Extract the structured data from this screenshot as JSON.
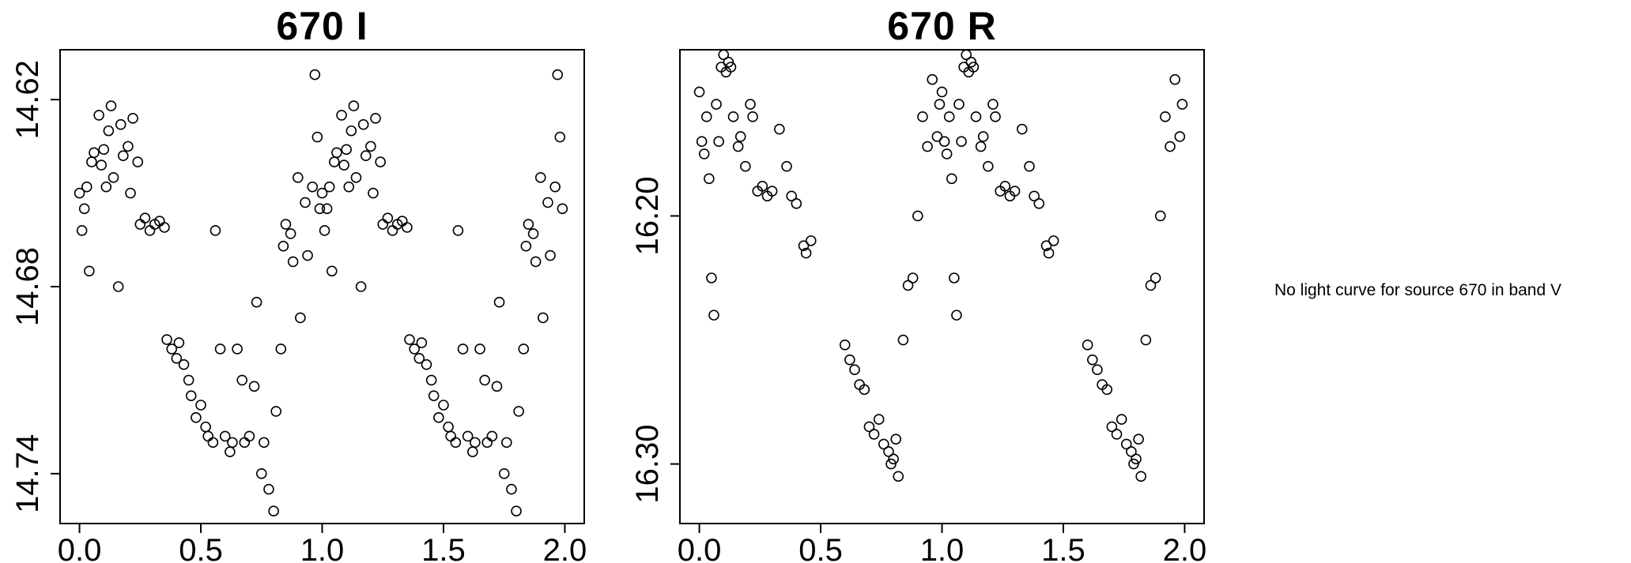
{
  "note": {
    "text": "No light curve for source 670 in band V"
  },
  "colors": {
    "foreground": "#000000",
    "background": "#ffffff"
  },
  "chart_data": [
    {
      "type": "scatter",
      "title": "670 I",
      "band": "I",
      "xlabel": "",
      "ylabel": "",
      "marker": "open-circle",
      "grid": false,
      "legend": "none",
      "y_axis_inverted": true,
      "phase_duplicated": true,
      "xlim": [
        -0.08,
        2.08
      ],
      "ylim": [
        14.756,
        14.604
      ],
      "x_ticks": [
        0.0,
        0.5,
        1.0,
        1.5,
        2.0
      ],
      "x_tick_labels": [
        "0.0",
        "0.5",
        "1.0",
        "1.5",
        "2.0"
      ],
      "y_ticks": [
        14.62,
        14.68,
        14.74
      ],
      "y_tick_labels": [
        "14.62",
        "14.68",
        "14.74"
      ],
      "points": {
        "phase": [
          0.0,
          0.01,
          0.02,
          0.03,
          0.04,
          0.05,
          0.06,
          0.08,
          0.09,
          0.1,
          0.11,
          0.12,
          0.13,
          0.14,
          0.16,
          0.17,
          0.18,
          0.2,
          0.21,
          0.22,
          0.24,
          0.25,
          0.27,
          0.29,
          0.31,
          0.33,
          0.35,
          0.36,
          0.38,
          0.4,
          0.41,
          0.43,
          0.45,
          0.46,
          0.48,
          0.5,
          0.52,
          0.53,
          0.55,
          0.56,
          0.58,
          0.6,
          0.62,
          0.63,
          0.65,
          0.67,
          0.68,
          0.7,
          0.72,
          0.73,
          0.75,
          0.76,
          0.78,
          0.8,
          0.81,
          0.83,
          0.84,
          0.85,
          0.87,
          0.88,
          0.9,
          0.91,
          0.93,
          0.94,
          0.96,
          0.97,
          0.98,
          0.99
        ],
        "mag": [
          14.65,
          14.662,
          14.655,
          14.648,
          14.675,
          14.64,
          14.637,
          14.625,
          14.641,
          14.636,
          14.648,
          14.63,
          14.622,
          14.645,
          14.68,
          14.628,
          14.638,
          14.635,
          14.65,
          14.626,
          14.64,
          14.66,
          14.658,
          14.662,
          14.66,
          14.659,
          14.661,
          14.697,
          14.7,
          14.703,
          14.698,
          14.705,
          14.71,
          14.715,
          14.722,
          14.718,
          14.725,
          14.728,
          14.73,
          14.662,
          14.7,
          14.728,
          14.733,
          14.73,
          14.7,
          14.71,
          14.73,
          14.728,
          14.712,
          14.685,
          14.74,
          14.73,
          14.745,
          14.752,
          14.72,
          14.7,
          14.667,
          14.66,
          14.663,
          14.672,
          14.645,
          14.69,
          14.653,
          14.67,
          14.648,
          14.612,
          14.632,
          14.655
        ]
      }
    },
    {
      "type": "scatter",
      "title": "670 R",
      "band": "R",
      "xlabel": "",
      "ylabel": "",
      "marker": "open-circle",
      "grid": false,
      "legend": "none",
      "y_axis_inverted": true,
      "phase_duplicated": true,
      "xlim": [
        -0.08,
        2.08
      ],
      "ylim": [
        16.324,
        16.133
      ],
      "x_ticks": [
        0.0,
        0.5,
        1.0,
        1.5,
        2.0
      ],
      "x_tick_labels": [
        "0.0",
        "0.5",
        "1.0",
        "1.5",
        "2.0"
      ],
      "y_ticks": [
        16.2,
        16.3
      ],
      "y_tick_labels": [
        "16.20",
        "16.30"
      ],
      "points": {
        "phase": [
          0.0,
          0.01,
          0.02,
          0.03,
          0.04,
          0.05,
          0.06,
          0.07,
          0.08,
          0.09,
          0.1,
          0.11,
          0.12,
          0.13,
          0.14,
          0.16,
          0.17,
          0.19,
          0.21,
          0.22,
          0.24,
          0.26,
          0.28,
          0.3,
          0.33,
          0.36,
          0.38,
          0.4,
          0.43,
          0.44,
          0.46,
          0.6,
          0.62,
          0.64,
          0.66,
          0.68,
          0.7,
          0.72,
          0.74,
          0.76,
          0.78,
          0.79,
          0.8,
          0.81,
          0.82,
          0.84,
          0.86,
          0.88,
          0.9,
          0.92,
          0.94,
          0.96,
          0.98,
          0.99
        ],
        "mag": [
          16.15,
          16.17,
          16.175,
          16.16,
          16.185,
          16.225,
          16.24,
          16.155,
          16.17,
          16.14,
          16.135,
          16.142,
          16.138,
          16.14,
          16.16,
          16.172,
          16.168,
          16.18,
          16.155,
          16.16,
          16.19,
          16.188,
          16.192,
          16.19,
          16.165,
          16.18,
          16.192,
          16.195,
          16.212,
          16.215,
          16.21,
          16.252,
          16.258,
          16.262,
          16.268,
          16.27,
          16.285,
          16.288,
          16.282,
          16.292,
          16.295,
          16.3,
          16.298,
          16.29,
          16.305,
          16.25,
          16.228,
          16.225,
          16.2,
          16.16,
          16.172,
          16.145,
          16.168,
          16.155
        ]
      }
    }
  ]
}
